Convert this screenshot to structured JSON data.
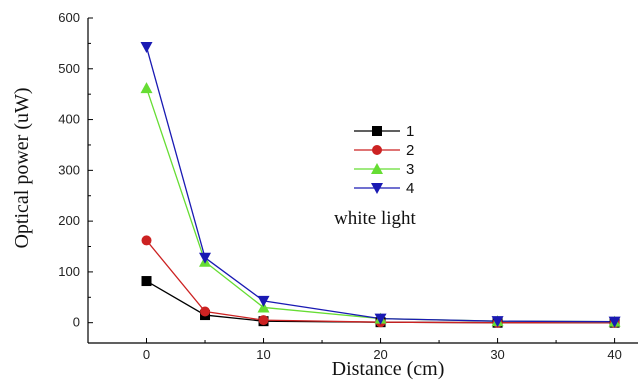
{
  "chart_data": {
    "type": "line",
    "xlabel": "Distance (cm)",
    "ylabel": "Optical power (uW)",
    "annotation": "white light",
    "xlim": [
      -5,
      42
    ],
    "ylim": [
      -40,
      600
    ],
    "x_ticks": [
      0,
      10,
      20,
      30,
      40
    ],
    "y_ticks": [
      0,
      100,
      200,
      300,
      400,
      500,
      600
    ],
    "x": [
      0,
      5,
      10,
      20,
      30,
      40
    ],
    "grid": false,
    "legend_position": "center-right",
    "series": [
      {
        "name": "1",
        "color": "#000000",
        "marker": "square",
        "values": [
          82,
          15,
          3,
          1,
          0,
          0
        ]
      },
      {
        "name": "2",
        "color": "#cc2222",
        "marker": "circle",
        "values": [
          162,
          22,
          5,
          1,
          0,
          0
        ]
      },
      {
        "name": "3",
        "color": "#66dd33",
        "marker": "triangle-up",
        "values": [
          462,
          120,
          30,
          8,
          3,
          2
        ]
      },
      {
        "name": "4",
        "color": "#1a1ab3",
        "marker": "triangle-down",
        "values": [
          543,
          128,
          43,
          8,
          3,
          2
        ]
      }
    ]
  }
}
